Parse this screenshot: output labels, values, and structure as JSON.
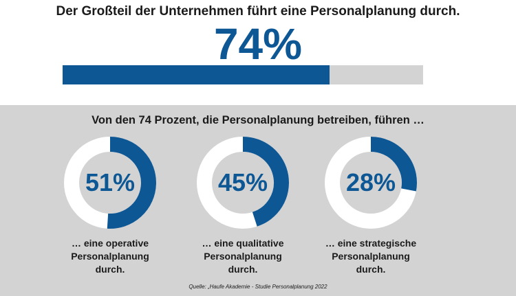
{
  "headline": "Der Großteil der Unternehmen führt eine Personalplanung durch.",
  "overall": {
    "label": "74%",
    "fraction": 0.74
  },
  "sub_headline": "Von den 74 Prozent, die Personalplanung betreiben, führen …",
  "source": "Quelle: „Haufe Akademie - Studie Personalplanung 2022",
  "colors": {
    "accent": "#0e5795",
    "track": "#d3d3d3",
    "ring_bg": "#ffffff"
  },
  "chart_data": [
    {
      "type": "bar",
      "categories": [
        "Personalplanung"
      ],
      "values": [
        74
      ],
      "ylim": [
        0,
        100
      ],
      "data_labels": [
        "74%"
      ]
    },
    {
      "type": "pie",
      "style": "donut",
      "slices": [
        {
          "label": "51%",
          "value": 51,
          "caption": [
            "… eine operative",
            "Personalplanung",
            "durch."
          ]
        },
        {
          "label": "45%",
          "value": 45,
          "caption": [
            "… eine qualitative",
            "Personalplanung",
            "durch."
          ]
        },
        {
          "label": "28%",
          "value": 28,
          "caption": [
            "… eine strategische",
            "Personalplanung",
            "durch."
          ]
        }
      ]
    }
  ]
}
